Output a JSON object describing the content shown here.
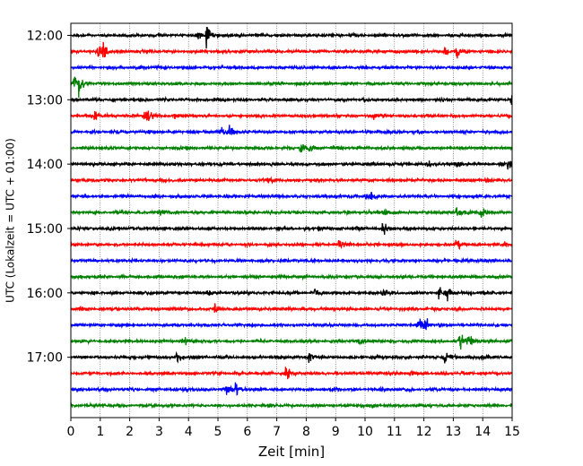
{
  "chart_data": {
    "type": "line",
    "title": "",
    "xlabel": "Zeit  [min]",
    "ylabel": "UTC (Lokalzeit = UTC + 01:00)",
    "xlim": [
      0,
      15
    ],
    "x_ticks": [
      "0",
      "1",
      "2",
      "3",
      "4",
      "5",
      "6",
      "7",
      "8",
      "9",
      "10",
      "11",
      "12",
      "13",
      "14",
      "15"
    ],
    "y_ticks": [
      {
        "label": "12:00",
        "row": 0
      },
      {
        "label": "13:00",
        "row": 4
      },
      {
        "label": "14:00",
        "row": 8
      },
      {
        "label": "15:00",
        "row": 12
      },
      {
        "label": "16:00",
        "row": 16
      },
      {
        "label": "17:00",
        "row": 20
      }
    ],
    "grid": "vertical dotted",
    "trace_interval_min": 15,
    "colors": [
      "#000000",
      "#ff0000",
      "#0000ff",
      "#008000"
    ],
    "series": [
      {
        "start": "12:00",
        "color": "#000000",
        "events": [
          {
            "t": 4.3,
            "amp": 0.35
          },
          {
            "t": 4.6,
            "amp": 0.7
          }
        ]
      },
      {
        "start": "12:15",
        "color": "#ff0000",
        "events": [
          {
            "t": 0.9,
            "amp": 0.45
          },
          {
            "t": 1.1,
            "amp": 0.6
          },
          {
            "t": 12.7,
            "amp": 0.4
          },
          {
            "t": 13.1,
            "amp": 0.45
          }
        ]
      },
      {
        "start": "12:30",
        "color": "#0000ff",
        "events": []
      },
      {
        "start": "12:45",
        "color": "#008000",
        "events": [
          {
            "t": 0.1,
            "amp": 0.6
          },
          {
            "t": 0.25,
            "amp": 0.8
          }
        ]
      },
      {
        "start": "13:00",
        "color": "#000000",
        "events": [
          {
            "t": 14.95,
            "amp": 0.55
          }
        ]
      },
      {
        "start": "13:15",
        "color": "#ff0000",
        "events": [
          {
            "t": 0.8,
            "amp": 0.4
          },
          {
            "t": 2.5,
            "amp": 0.35
          },
          {
            "t": 2.6,
            "amp": 0.3
          },
          {
            "t": 3.5,
            "amp": 0.2
          },
          {
            "t": 10.3,
            "amp": 0.15
          }
        ]
      },
      {
        "start": "13:30",
        "color": "#0000ff",
        "events": [
          {
            "t": 5.1,
            "amp": 0.35
          },
          {
            "t": 5.4,
            "amp": 0.45
          }
        ]
      },
      {
        "start": "13:45",
        "color": "#008000",
        "events": [
          {
            "t": 7.8,
            "amp": 0.3
          },
          {
            "t": 8.1,
            "amp": 0.2
          },
          {
            "t": 8.9,
            "amp": 0.15
          }
        ]
      },
      {
        "start": "14:00",
        "color": "#000000",
        "events": [
          {
            "t": 10.8,
            "amp": 0.15
          },
          {
            "t": 12.1,
            "amp": 0.2
          },
          {
            "t": 13.1,
            "amp": 0.2
          },
          {
            "t": 14.85,
            "amp": 0.5
          }
        ]
      },
      {
        "start": "14:15",
        "color": "#ff0000",
        "events": [
          {
            "t": 6.7,
            "amp": 0.15
          }
        ]
      },
      {
        "start": "14:30",
        "color": "#0000ff",
        "events": [
          {
            "t": 10.0,
            "amp": 0.2
          },
          {
            "t": 10.2,
            "amp": 0.25
          }
        ]
      },
      {
        "start": "14:45",
        "color": "#008000",
        "events": [
          {
            "t": 3.0,
            "amp": 0.25
          },
          {
            "t": 10.6,
            "amp": 0.25
          },
          {
            "t": 13.1,
            "amp": 0.25
          },
          {
            "t": 13.9,
            "amp": 0.5
          }
        ]
      },
      {
        "start": "15:00",
        "color": "#000000",
        "events": [
          {
            "t": 1.3,
            "amp": 0.15
          },
          {
            "t": 8.4,
            "amp": 0.2
          },
          {
            "t": 9.7,
            "amp": 0.2
          },
          {
            "t": 10.6,
            "amp": 0.45
          }
        ]
      },
      {
        "start": "15:15",
        "color": "#ff0000",
        "events": [
          {
            "t": 9.1,
            "amp": 0.3
          },
          {
            "t": 13.1,
            "amp": 0.4
          },
          {
            "t": 14.7,
            "amp": 0.2
          }
        ]
      },
      {
        "start": "15:30",
        "color": "#0000ff",
        "events": []
      },
      {
        "start": "15:45",
        "color": "#008000",
        "events": []
      },
      {
        "start": "16:00",
        "color": "#000000",
        "events": [
          {
            "t": 4.6,
            "amp": 0.2
          },
          {
            "t": 8.3,
            "amp": 0.2
          },
          {
            "t": 10.6,
            "amp": 0.35
          },
          {
            "t": 12.5,
            "amp": 0.45
          },
          {
            "t": 12.75,
            "amp": 0.6
          }
        ]
      },
      {
        "start": "16:15",
        "color": "#ff0000",
        "events": [
          {
            "t": 4.9,
            "amp": 0.4
          }
        ]
      },
      {
        "start": "16:30",
        "color": "#0000ff",
        "events": [
          {
            "t": 11.8,
            "amp": 0.65
          },
          {
            "t": 12.0,
            "amp": 0.55
          }
        ]
      },
      {
        "start": "16:45",
        "color": "#008000",
        "events": [
          {
            "t": 3.8,
            "amp": 0.3
          },
          {
            "t": 9.8,
            "amp": 0.2
          },
          {
            "t": 13.2,
            "amp": 0.6
          },
          {
            "t": 13.5,
            "amp": 0.5
          }
        ]
      },
      {
        "start": "17:00",
        "color": "#000000",
        "events": [
          {
            "t": 3.6,
            "amp": 0.35
          },
          {
            "t": 8.1,
            "amp": 0.35
          },
          {
            "t": 12.7,
            "amp": 0.3
          },
          {
            "t": 14.0,
            "amp": 0.3
          }
        ]
      },
      {
        "start": "17:15",
        "color": "#ff0000",
        "events": [
          {
            "t": 7.3,
            "amp": 0.55
          },
          {
            "t": 11.5,
            "amp": 0.2
          }
        ]
      },
      {
        "start": "17:30",
        "color": "#0000ff",
        "events": [
          {
            "t": 3.9,
            "amp": 0.15
          },
          {
            "t": 5.3,
            "amp": 0.4
          },
          {
            "t": 5.6,
            "amp": 0.5
          }
        ]
      },
      {
        "start": "17:45",
        "color": "#008000",
        "events": []
      }
    ]
  }
}
